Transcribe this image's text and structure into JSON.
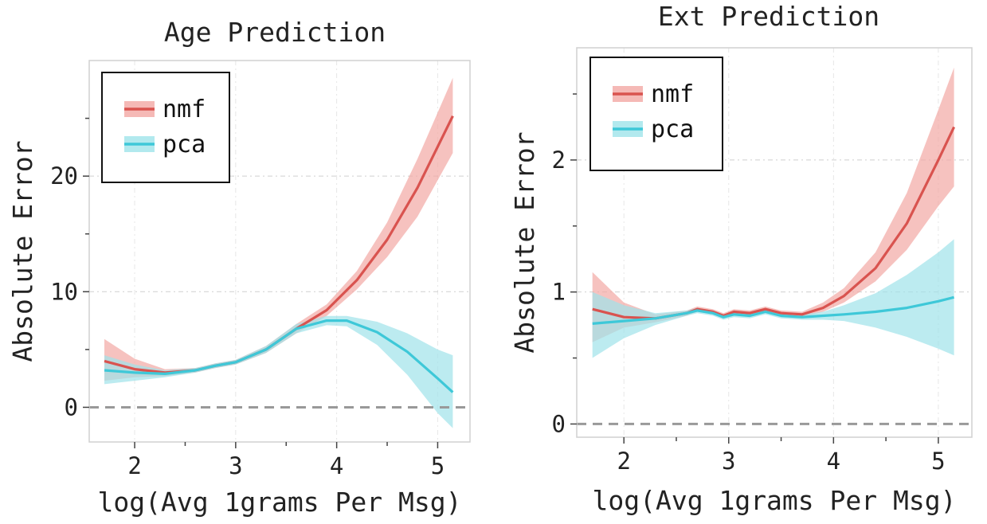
{
  "chart_data": [
    {
      "type": "line",
      "title": "Age Prediction",
      "xlabel": "log(Avg 1grams Per Msg)",
      "ylabel": "Absolute Error",
      "xlim": [
        1.55,
        5.32
      ],
      "ylim": [
        -3,
        30
      ],
      "xticks": [
        2,
        3,
        4,
        5
      ],
      "xtick_labels": [
        "2",
        "3",
        "4",
        "5"
      ],
      "yticks": [
        0,
        10,
        20
      ],
      "ytick_labels": [
        "0",
        "10",
        "20"
      ],
      "grid": true,
      "zero_line": 0,
      "legend": {
        "position": "top-left",
        "entries": [
          "nmf",
          "pca"
        ]
      },
      "series": [
        {
          "name": "nmf",
          "color": "#d9534f",
          "band_color": "#f2a8a4",
          "x": [
            1.7,
            2.0,
            2.3,
            2.6,
            2.8,
            3.0,
            3.3,
            3.6,
            3.9,
            4.2,
            4.5,
            4.8,
            5.15
          ],
          "y": [
            4.0,
            3.3,
            3.0,
            3.2,
            3.6,
            3.9,
            5.0,
            6.8,
            8.4,
            11.0,
            14.5,
            19.0,
            25.2
          ],
          "lower": [
            2.3,
            2.6,
            2.7,
            3.0,
            3.4,
            3.7,
            4.7,
            6.4,
            7.9,
            10.2,
            13.0,
            16.5,
            22.0
          ],
          "upper": [
            5.9,
            4.2,
            3.3,
            3.4,
            3.8,
            4.1,
            5.3,
            7.2,
            8.9,
            11.8,
            16.0,
            21.5,
            28.5
          ]
        },
        {
          "name": "pca",
          "color": "#3ec8d8",
          "band_color": "#9fe3ea",
          "x": [
            1.7,
            2.0,
            2.3,
            2.6,
            2.8,
            3.0,
            3.3,
            3.6,
            3.9,
            4.1,
            4.4,
            4.7,
            5.0,
            5.15
          ],
          "y": [
            3.2,
            3.0,
            2.9,
            3.2,
            3.6,
            3.9,
            5.0,
            6.8,
            7.5,
            7.5,
            6.5,
            4.8,
            2.5,
            1.3
          ],
          "lower": [
            2.0,
            2.3,
            2.6,
            3.0,
            3.4,
            3.7,
            4.7,
            6.4,
            7.1,
            7.0,
            5.4,
            2.8,
            -0.5,
            -1.8
          ],
          "upper": [
            4.5,
            3.7,
            3.2,
            3.4,
            3.8,
            4.1,
            5.3,
            7.2,
            7.9,
            7.9,
            7.4,
            6.4,
            5.0,
            4.5
          ]
        }
      ]
    },
    {
      "type": "line",
      "title": "Ext Prediction",
      "xlabel": "log(Avg 1grams Per Msg)",
      "ylabel": "Absolute Error",
      "xlim": [
        1.55,
        5.32
      ],
      "ylim": [
        -0.1,
        2.85
      ],
      "xticks": [
        2,
        3,
        4,
        5
      ],
      "xtick_labels": [
        "2",
        "3",
        "4",
        "5"
      ],
      "yticks": [
        0,
        1,
        2
      ],
      "ytick_labels": [
        "0",
        "1",
        "2"
      ],
      "grid": true,
      "zero_line": 0,
      "legend": {
        "position": "top-left",
        "entries": [
          "nmf",
          "pca"
        ]
      },
      "series": [
        {
          "name": "nmf",
          "color": "#d9534f",
          "band_color": "#f2a8a4",
          "x": [
            1.7,
            2.0,
            2.3,
            2.6,
            2.7,
            2.85,
            2.95,
            3.05,
            3.2,
            3.35,
            3.5,
            3.7,
            3.9,
            4.1,
            4.4,
            4.7,
            5.0,
            5.15
          ],
          "y": [
            0.87,
            0.81,
            0.8,
            0.84,
            0.87,
            0.85,
            0.82,
            0.85,
            0.84,
            0.87,
            0.84,
            0.83,
            0.88,
            0.97,
            1.18,
            1.52,
            2.0,
            2.25
          ],
          "lower": [
            0.62,
            0.73,
            0.77,
            0.82,
            0.85,
            0.83,
            0.8,
            0.83,
            0.82,
            0.85,
            0.82,
            0.81,
            0.85,
            0.92,
            1.08,
            1.32,
            1.65,
            1.8
          ],
          "upper": [
            1.15,
            0.92,
            0.83,
            0.86,
            0.89,
            0.87,
            0.84,
            0.87,
            0.86,
            0.89,
            0.86,
            0.85,
            0.92,
            1.03,
            1.3,
            1.75,
            2.38,
            2.7
          ]
        },
        {
          "name": "pca",
          "color": "#3ec8d8",
          "band_color": "#9fe3ea",
          "x": [
            1.7,
            2.0,
            2.3,
            2.6,
            2.7,
            2.85,
            2.95,
            3.05,
            3.2,
            3.35,
            3.5,
            3.7,
            3.9,
            4.1,
            4.4,
            4.7,
            5.0,
            5.15
          ],
          "y": [
            0.76,
            0.78,
            0.8,
            0.84,
            0.86,
            0.84,
            0.81,
            0.83,
            0.82,
            0.85,
            0.82,
            0.81,
            0.82,
            0.83,
            0.85,
            0.88,
            0.93,
            0.96
          ],
          "lower": [
            0.5,
            0.65,
            0.75,
            0.82,
            0.84,
            0.82,
            0.79,
            0.81,
            0.8,
            0.83,
            0.8,
            0.79,
            0.79,
            0.78,
            0.73,
            0.66,
            0.57,
            0.52
          ],
          "upper": [
            1.0,
            0.9,
            0.84,
            0.86,
            0.88,
            0.86,
            0.83,
            0.85,
            0.84,
            0.87,
            0.84,
            0.83,
            0.85,
            0.9,
            0.99,
            1.13,
            1.3,
            1.4
          ]
        }
      ]
    }
  ]
}
